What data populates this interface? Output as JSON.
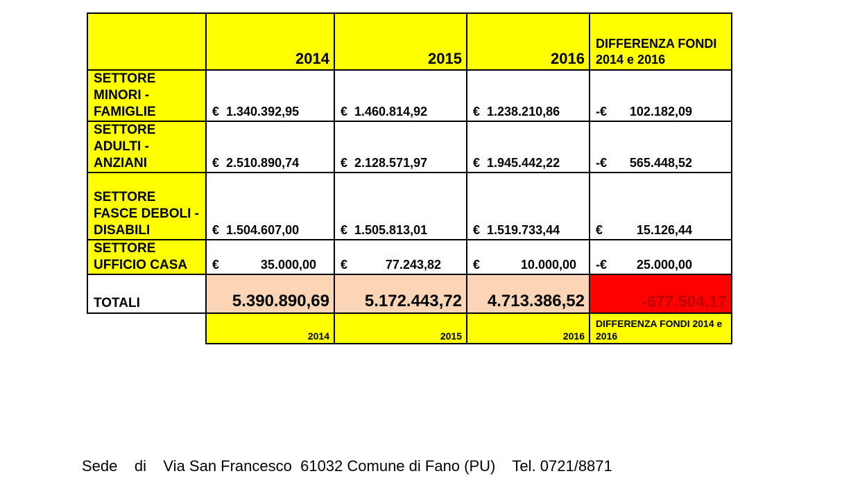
{
  "header": {
    "years": [
      "2014",
      "2015",
      "2016"
    ],
    "difference_label": "DIFFERENZA FONDI 2014 e 2016"
  },
  "rows": [
    {
      "label": "SETTORE MINORI - FAMIGLIE",
      "values": [
        {
          "currency": "€",
          "amount": "1.340.392,95"
        },
        {
          "currency": "€",
          "amount": "1.460.814,92"
        },
        {
          "currency": "€",
          "amount": "1.238.210,86"
        },
        {
          "currency": "-€",
          "amount": "102.182,09"
        }
      ]
    },
    {
      "label": "SETTORE ADULTI - ANZIANI",
      "values": [
        {
          "currency": "€",
          "amount": "2.510.890,74"
        },
        {
          "currency": "€",
          "amount": "2.128.571,97"
        },
        {
          "currency": "€",
          "amount": "1.945.442,22"
        },
        {
          "currency": "-€",
          "amount": "565.448,52"
        }
      ]
    },
    {
      "label": "SETTORE FASCE DEBOLI - DISABILI",
      "values": [
        {
          "currency": "€",
          "amount": "1.504.607,00"
        },
        {
          "currency": "€",
          "amount": "1.505.813,01"
        },
        {
          "currency": "€",
          "amount": "1.519.733,44"
        },
        {
          "currency": "€",
          "amount": "15.126,44"
        }
      ]
    },
    {
      "label": "SETTORE UFFICIO CASA",
      "values": [
        {
          "currency": "€",
          "amount": "35.000,00"
        },
        {
          "currency": "€",
          "amount": "77.243,82"
        },
        {
          "currency": "€",
          "amount": "10.000,00"
        },
        {
          "currency": "-€",
          "amount": "25.000,00"
        }
      ]
    }
  ],
  "totals": {
    "label": "TOTALI",
    "values": [
      "5.390.890,69",
      "5.172.443,72",
      "4.713.386,52",
      "-677.504,17"
    ]
  },
  "footer_row": {
    "years": [
      "2014",
      "2015",
      "2016"
    ],
    "difference_label": "DIFFERENZA FONDI 2014 e 2016"
  },
  "footer_text": "Sede    di    Via San Francesco  61032 Comune di Fano (PU)    Tel. 0721/8871",
  "colors": {
    "header_bg": "#ffff00",
    "totals_bg": "#fbd5b5",
    "difference_total_bg": "#ff0000",
    "difference_total_text": "#c00000"
  }
}
